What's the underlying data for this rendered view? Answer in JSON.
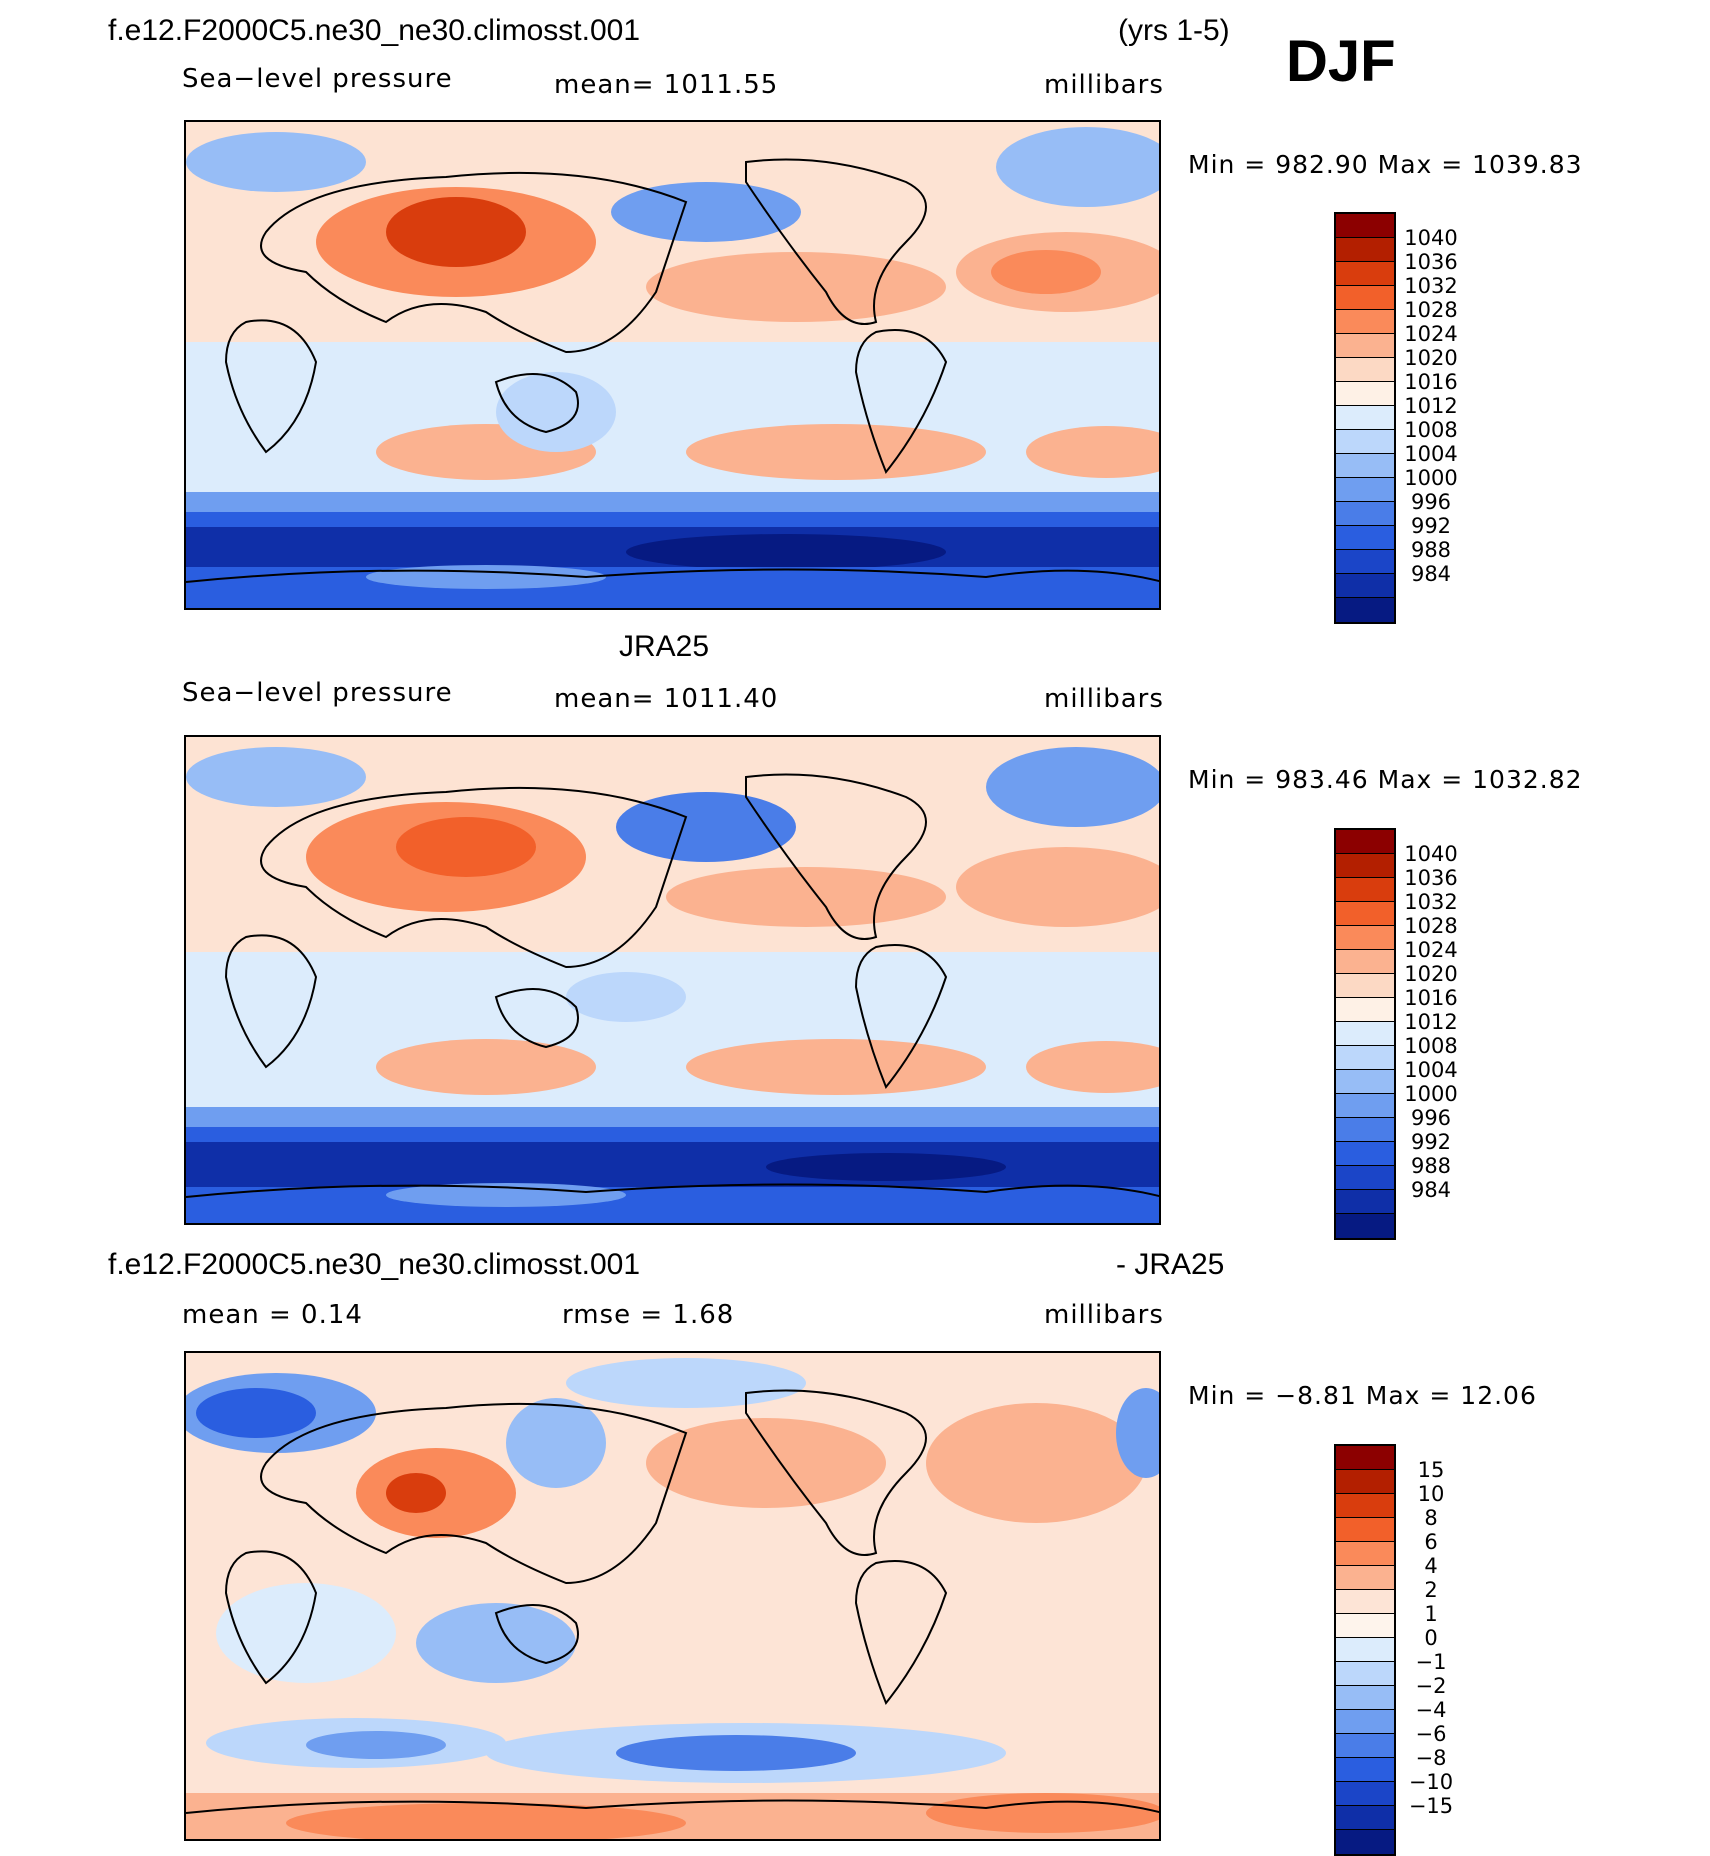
{
  "header": {
    "case_name": "f.e12.F2000C5.ne30_ne30.climosst.001",
    "years": "(yrs 1-5)",
    "season": "DJF"
  },
  "panels": [
    {
      "id": "model",
      "title": "",
      "field_label": "Sea−level pressure",
      "stat_left": "mean=  1011.55",
      "stat_mid": "",
      "units": "millibars",
      "minmax": "Min  =  982.90  Max  =  1039.83",
      "colorbar": {
        "colors": [
          "#8c0000",
          "#b31f00",
          "#d93d0d",
          "#f2602a",
          "#fa8a5a",
          "#fbb290",
          "#fcd9c4",
          "#fef1e6",
          "#dcecfc",
          "#bcd7fb",
          "#97bdf6",
          "#6f9ef0",
          "#4a7de8",
          "#2a5ee0",
          "#1b45c8",
          "#0f2fa8",
          "#061a82"
        ],
        "labels": [
          "1040",
          "1036",
          "1032",
          "1028",
          "1024",
          "1020",
          "1016",
          "1012",
          "1008",
          "1004",
          "1000",
          "996",
          "992",
          "988",
          "984"
        ]
      }
    },
    {
      "id": "obs",
      "title": "JRA25",
      "field_label": "Sea−level pressure",
      "stat_left": "mean=  1011.40",
      "stat_mid": "",
      "units": "millibars",
      "minmax": "Min  =  983.46  Max  =  1032.82",
      "colorbar": {
        "colors": [
          "#8c0000",
          "#b31f00",
          "#d93d0d",
          "#f2602a",
          "#fa8a5a",
          "#fbb290",
          "#fcd9c4",
          "#fef1e6",
          "#dcecfc",
          "#bcd7fb",
          "#97bdf6",
          "#6f9ef0",
          "#4a7de8",
          "#2a5ee0",
          "#1b45c8",
          "#0f2fa8",
          "#061a82"
        ],
        "labels": [
          "1040",
          "1036",
          "1032",
          "1028",
          "1024",
          "1020",
          "1016",
          "1012",
          "1008",
          "1004",
          "1000",
          "996",
          "992",
          "988",
          "984"
        ]
      }
    },
    {
      "id": "diff",
      "title_left": "f.e12.F2000C5.ne30_ne30.climosst.001",
      "title_right": "- JRA25",
      "stat_left": "mean  =     0.14",
      "stat_mid": "rmse  =      1.68",
      "units": "millibars",
      "minmax": "Min  =    −8.81  Max  =    12.06",
      "colorbar": {
        "colors": [
          "#8c0000",
          "#b31f00",
          "#d93d0d",
          "#f2602a",
          "#fa8a5a",
          "#fbb290",
          "#fde4d6",
          "#fef4ec",
          "#dcecfc",
          "#bcd7fb",
          "#97bdf6",
          "#6f9ef0",
          "#4a7de8",
          "#2a5ee0",
          "#1b45c8",
          "#0f2fa8",
          "#061a82"
        ],
        "labels": [
          "15",
          "10",
          "8",
          "6",
          "4",
          "2",
          "1",
          "0",
          "−1",
          "−2",
          "−4",
          "−6",
          "−8",
          "−10",
          "−15"
        ]
      }
    }
  ],
  "chart_data": [
    {
      "type": "heatmap",
      "title": "Sea−level pressure",
      "units": "millibars",
      "mean": 1011.55,
      "min": 982.9,
      "max": 1039.83,
      "levels": [
        984,
        988,
        992,
        996,
        1000,
        1004,
        1008,
        1012,
        1016,
        1020,
        1024,
        1028,
        1032,
        1036,
        1040
      ]
    },
    {
      "type": "heatmap",
      "title": "JRA25",
      "units": "millibars",
      "mean": 1011.4,
      "min": 983.46,
      "max": 1032.82,
      "levels": [
        984,
        988,
        992,
        996,
        1000,
        1004,
        1008,
        1012,
        1016,
        1020,
        1024,
        1028,
        1032,
        1036,
        1040
      ]
    },
    {
      "type": "heatmap",
      "title": "f.e12.F2000C5.ne30_ne30.climosst.001 - JRA25",
      "units": "millibars",
      "mean": 0.14,
      "rmse": 1.68,
      "min": -8.81,
      "max": 12.06,
      "levels": [
        -15,
        -10,
        -8,
        -6,
        -4,
        -2,
        -1,
        0,
        1,
        2,
        4,
        6,
        8,
        10,
        15
      ]
    }
  ]
}
